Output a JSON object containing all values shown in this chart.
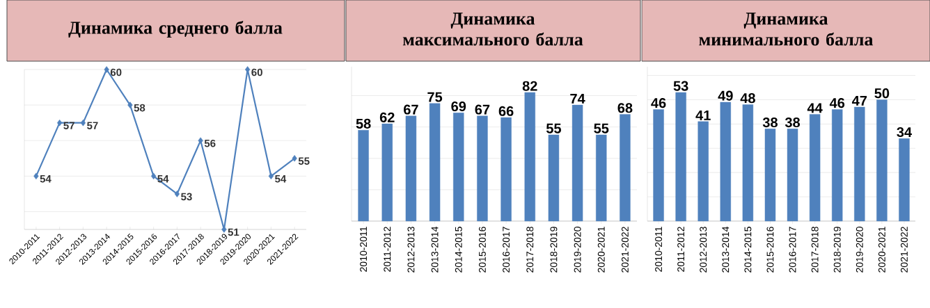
{
  "chart_data": [
    {
      "type": "line",
      "title": "Динамика среднего балла",
      "categories": [
        "2010-2011",
        "2011-2012",
        "2012-2013",
        "2013-2014",
        "2014-2015",
        "2015-2016",
        "2016-2017",
        "2017-2018",
        "2018-2019",
        "2019-2020",
        "2020-2021",
        "2021-2022"
      ],
      "values": [
        54,
        57,
        57,
        60,
        58,
        54,
        53,
        56,
        51,
        60,
        54,
        55
      ],
      "color": "#4f81bd",
      "marker": "diamond",
      "data_labels": true,
      "grid": "y",
      "tick_labels": "x"
    },
    {
      "type": "bar",
      "title": "Динамика максимального балла",
      "categories": [
        "2010-2011",
        "2011-2012",
        "2012-2013",
        "2013-2014",
        "2014-2015",
        "2015-2016",
        "2016-2017",
        "2017-2018",
        "2018-2019",
        "2019-2020",
        "2020-2021",
        "2021-2022"
      ],
      "values": [
        58,
        62,
        67,
        75,
        69,
        67,
        66,
        82,
        55,
        74,
        55,
        68
      ],
      "color": "#4f81bd",
      "data_labels": true,
      "grid": "y",
      "tick_labels": "x"
    },
    {
      "type": "bar",
      "title": "Динамика минимального балла",
      "categories": [
        "2010-2011",
        "2011-2012",
        "2012-2013",
        "2013-2014",
        "2014-2015",
        "2015-2016",
        "2016-2017",
        "2017-2018",
        "2018-2019",
        "2019-2020",
        "2020-2021",
        "2021-2022"
      ],
      "values": [
        46,
        53,
        41,
        49,
        48,
        38,
        38,
        44,
        46,
        47,
        50,
        34
      ],
      "color": "#4f81bd",
      "data_labels": true,
      "grid": "y",
      "tick_labels": "x"
    }
  ]
}
